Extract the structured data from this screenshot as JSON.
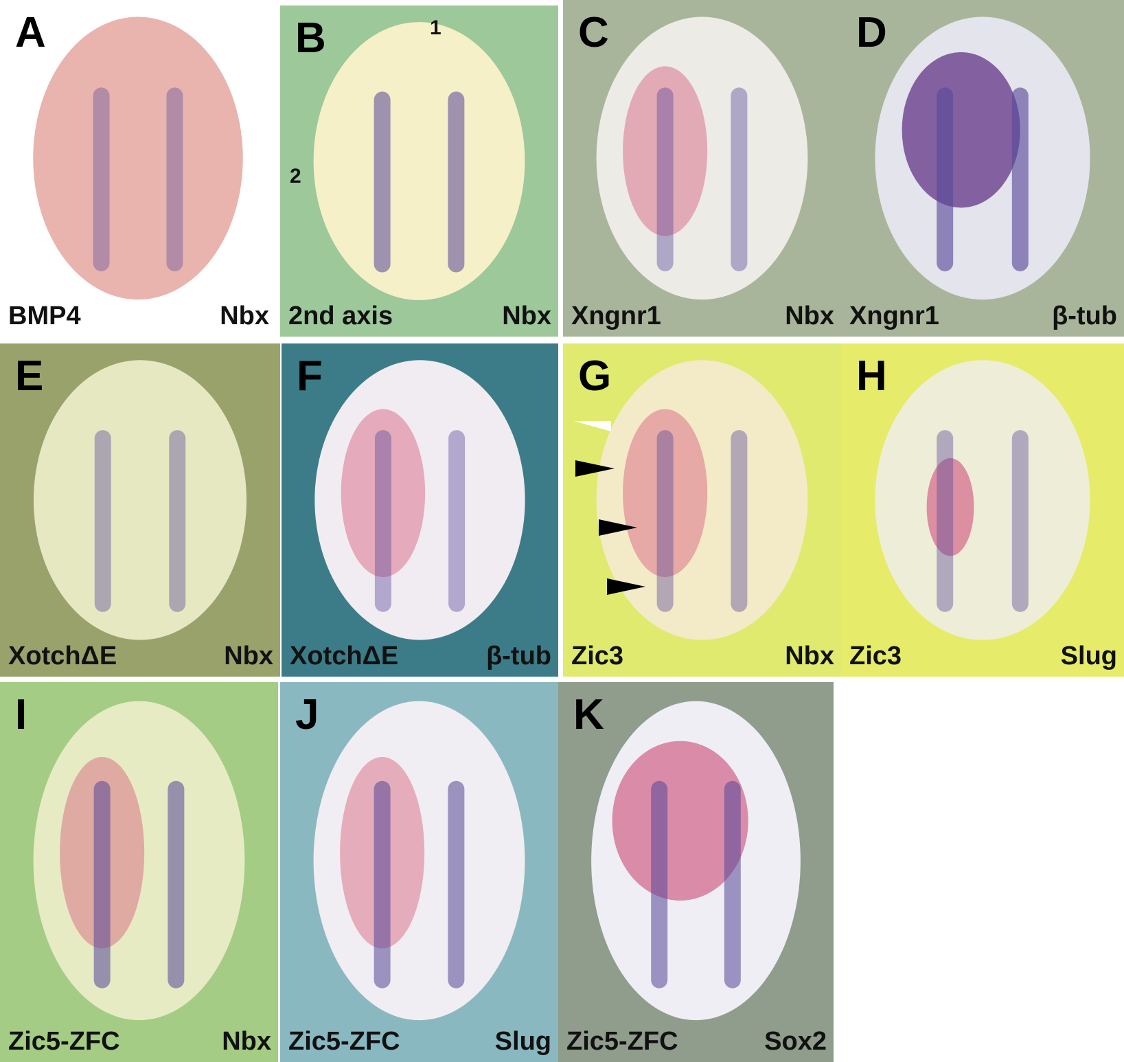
{
  "panels": [
    {
      "letter": "A",
      "left_label": "BMP4",
      "right_label": "Nbx"
    },
    {
      "letter": "B",
      "left_label": "2nd axis",
      "right_label": "Nbx",
      "numbers": [
        "1",
        "2"
      ]
    },
    {
      "letter": "C",
      "left_label": "Xngnr1",
      "right_label": "Nbx"
    },
    {
      "letter": "D",
      "left_label": "Xngnr1",
      "right_label": "β-tub"
    },
    {
      "letter": "E",
      "left_label": "XotchΔE",
      "right_label": "Nbx"
    },
    {
      "letter": "F",
      "left_label": "XotchΔE",
      "right_label": "β-tub"
    },
    {
      "letter": "G",
      "left_label": "Zic3",
      "right_label": "Nbx"
    },
    {
      "letter": "H",
      "left_label": "Zic3",
      "right_label": "Slug"
    },
    {
      "letter": "I",
      "left_label": "Zic5-ZFC",
      "right_label": "Nbx"
    },
    {
      "letter": "J",
      "left_label": "Zic5-ZFC",
      "right_label": "Slug"
    },
    {
      "letter": "K",
      "left_label": "Zic5-ZFC",
      "right_label": "Sox2"
    }
  ]
}
